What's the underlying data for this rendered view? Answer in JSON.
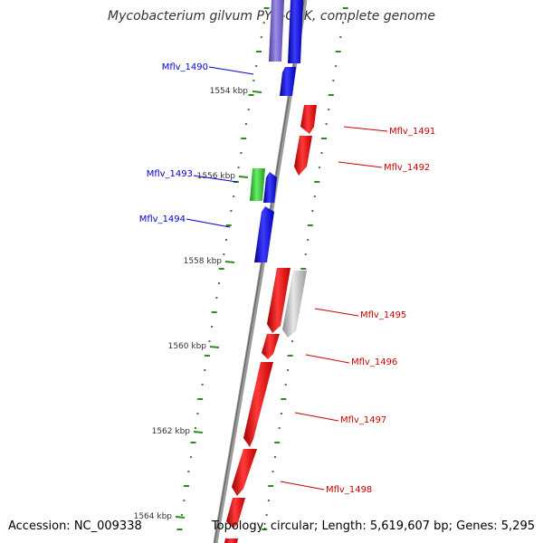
{
  "title": "Mycobacterium gilvum PYR-GCK, complete genome",
  "footer": {
    "accession": "Accession: NC_009338",
    "topology": "Topology: circular; Length: 5,619,607 bp; Genes: 5,295"
  },
  "colors": {
    "forward_gene": "#0000ee",
    "reverse_gene": "#ee0000",
    "rna_gene": "#33cc33",
    "pseudo_gene": "#c0c0c0",
    "highlight_gene": "#7b68c8",
    "backbone": "#808080",
    "tick": "#2e8b22"
  },
  "scale_labels": [
    {
      "id": "1554",
      "label": "1554 kbp"
    },
    {
      "id": "1556",
      "label": "1556 kbp"
    },
    {
      "id": "1558",
      "label": "1558 kbp"
    },
    {
      "id": "1560",
      "label": "1560 kbp"
    },
    {
      "id": "1562",
      "label": "1562 kbp"
    },
    {
      "id": "1564",
      "label": "1564 kbp"
    }
  ],
  "gene_labels": [
    {
      "id": "Mflv_1490",
      "label": "Mflv_1490",
      "strand": "forward"
    },
    {
      "id": "Mflv_1491",
      "label": "Mflv_1491",
      "strand": "reverse"
    },
    {
      "id": "Mflv_1492",
      "label": "Mflv_1492",
      "strand": "reverse"
    },
    {
      "id": "Mflv_1493",
      "label": "Mflv_1493",
      "strand": "forward"
    },
    {
      "id": "Mflv_1494",
      "label": "Mflv_1494",
      "strand": "forward"
    },
    {
      "id": "Mflv_1495",
      "label": "Mflv_1495",
      "strand": "reverse"
    },
    {
      "id": "Mflv_1496",
      "label": "Mflv_1496",
      "strand": "reverse"
    },
    {
      "id": "Mflv_1497",
      "label": "Mflv_1497",
      "strand": "reverse"
    },
    {
      "id": "Mflv_1498",
      "label": "Mflv_1498",
      "strand": "reverse"
    }
  ]
}
